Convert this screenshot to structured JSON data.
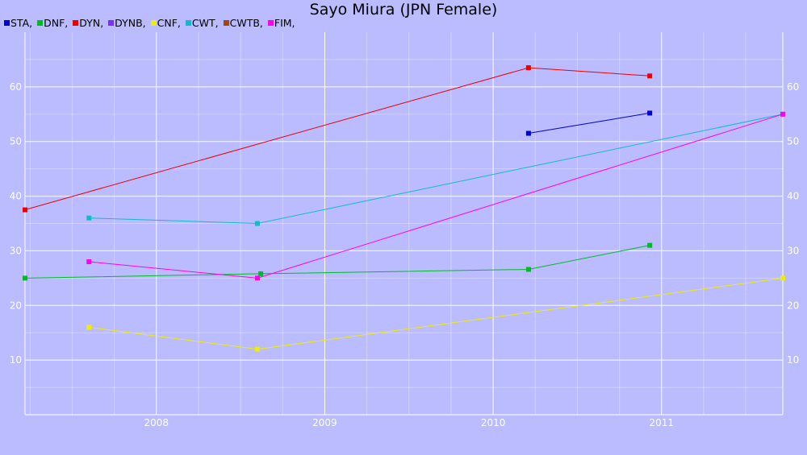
{
  "chart_data": {
    "type": "line",
    "title": "Sayo Miura (JPN Female)",
    "xlabel": "",
    "ylabel": "",
    "grid": true,
    "legend_placement": "top-left",
    "xlim": [
      2007.22,
      2011.72
    ],
    "ylim": [
      0,
      70
    ],
    "x_ticks": [
      2008,
      2009,
      2010,
      2011
    ],
    "x_tick_labels": [
      "2008",
      "2009",
      "2010",
      "2011"
    ],
    "y_ticks": [
      10,
      20,
      30,
      40,
      50,
      60
    ],
    "y_tick_labels": [
      "10",
      "20",
      "30",
      "40",
      "50",
      "60"
    ],
    "colors": {
      "background": "#bbbbff",
      "grid": "#ffffff",
      "axis": "#ffffff"
    },
    "series": [
      {
        "name": "STA",
        "color": "#0000cc",
        "points": [
          [
            2010.21,
            51.5
          ],
          [
            2010.93,
            55.2
          ]
        ]
      },
      {
        "name": "DNF",
        "color": "#00bb22",
        "points": [
          [
            2007.22,
            25.0
          ],
          [
            2008.62,
            25.8
          ],
          [
            2010.21,
            26.6
          ],
          [
            2010.93,
            31.0
          ]
        ]
      },
      {
        "name": "DYN",
        "color": "#ee0000",
        "points": [
          [
            2007.22,
            37.5
          ],
          [
            2010.21,
            63.5
          ],
          [
            2010.93,
            62.0
          ]
        ]
      },
      {
        "name": "DYNB",
        "color": "#7733ee",
        "points": []
      },
      {
        "name": "CNF",
        "color": "#eeee00",
        "points": [
          [
            2007.6,
            16.0
          ],
          [
            2008.6,
            12.0
          ],
          [
            2011.72,
            25.0
          ]
        ]
      },
      {
        "name": "CWT",
        "color": "#11bbcc",
        "points": [
          [
            2007.6,
            36.0
          ],
          [
            2008.6,
            35.0
          ],
          [
            2011.72,
            55.0
          ]
        ]
      },
      {
        "name": "CWTB",
        "color": "#aa4400",
        "points": []
      },
      {
        "name": "FIM",
        "color": "#ff00ee",
        "points": [
          [
            2007.6,
            28.0
          ],
          [
            2008.6,
            25.0
          ],
          [
            2011.72,
            55.0
          ]
        ]
      }
    ]
  }
}
